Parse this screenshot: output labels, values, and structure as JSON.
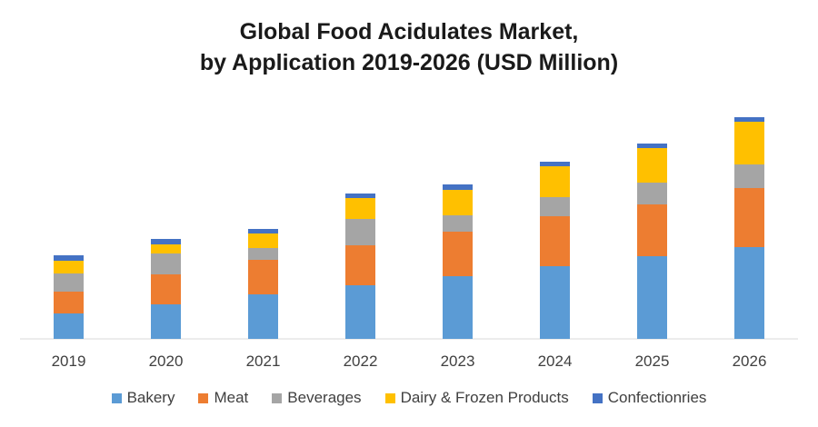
{
  "chart_data": {
    "type": "bar",
    "stacked": true,
    "title_line1": "Global Food Acidulates Market,",
    "title_line2": "by Application 2019-2026 (USD Million)",
    "categories": [
      "2019",
      "2020",
      "2021",
      "2022",
      "2023",
      "2024",
      "2025",
      "2026"
    ],
    "series": [
      {
        "name": "Bakery",
        "color": "#5b9bd5",
        "values": [
          28,
          38,
          49,
          59,
          69,
          80,
          91,
          101
        ]
      },
      {
        "name": "Meat",
        "color": "#ed7d31",
        "values": [
          24,
          33,
          38,
          44,
          49,
          55,
          57,
          65
        ]
      },
      {
        "name": "Beverages",
        "color": "#a5a5a5",
        "values": [
          20,
          23,
          13,
          29,
          18,
          21,
          24,
          26
        ]
      },
      {
        "name": "Dairy & Frozen Products",
        "color": "#ffc000",
        "values": [
          14,
          10,
          16,
          23,
          28,
          34,
          38,
          47
        ]
      },
      {
        "name": "Confectionries",
        "color": "#4472c4",
        "values": [
          6,
          6,
          5,
          5,
          6,
          5,
          5,
          5
        ]
      }
    ],
    "ylim": [
      0,
      250
    ],
    "grid": false,
    "legend_position": "bottom"
  }
}
